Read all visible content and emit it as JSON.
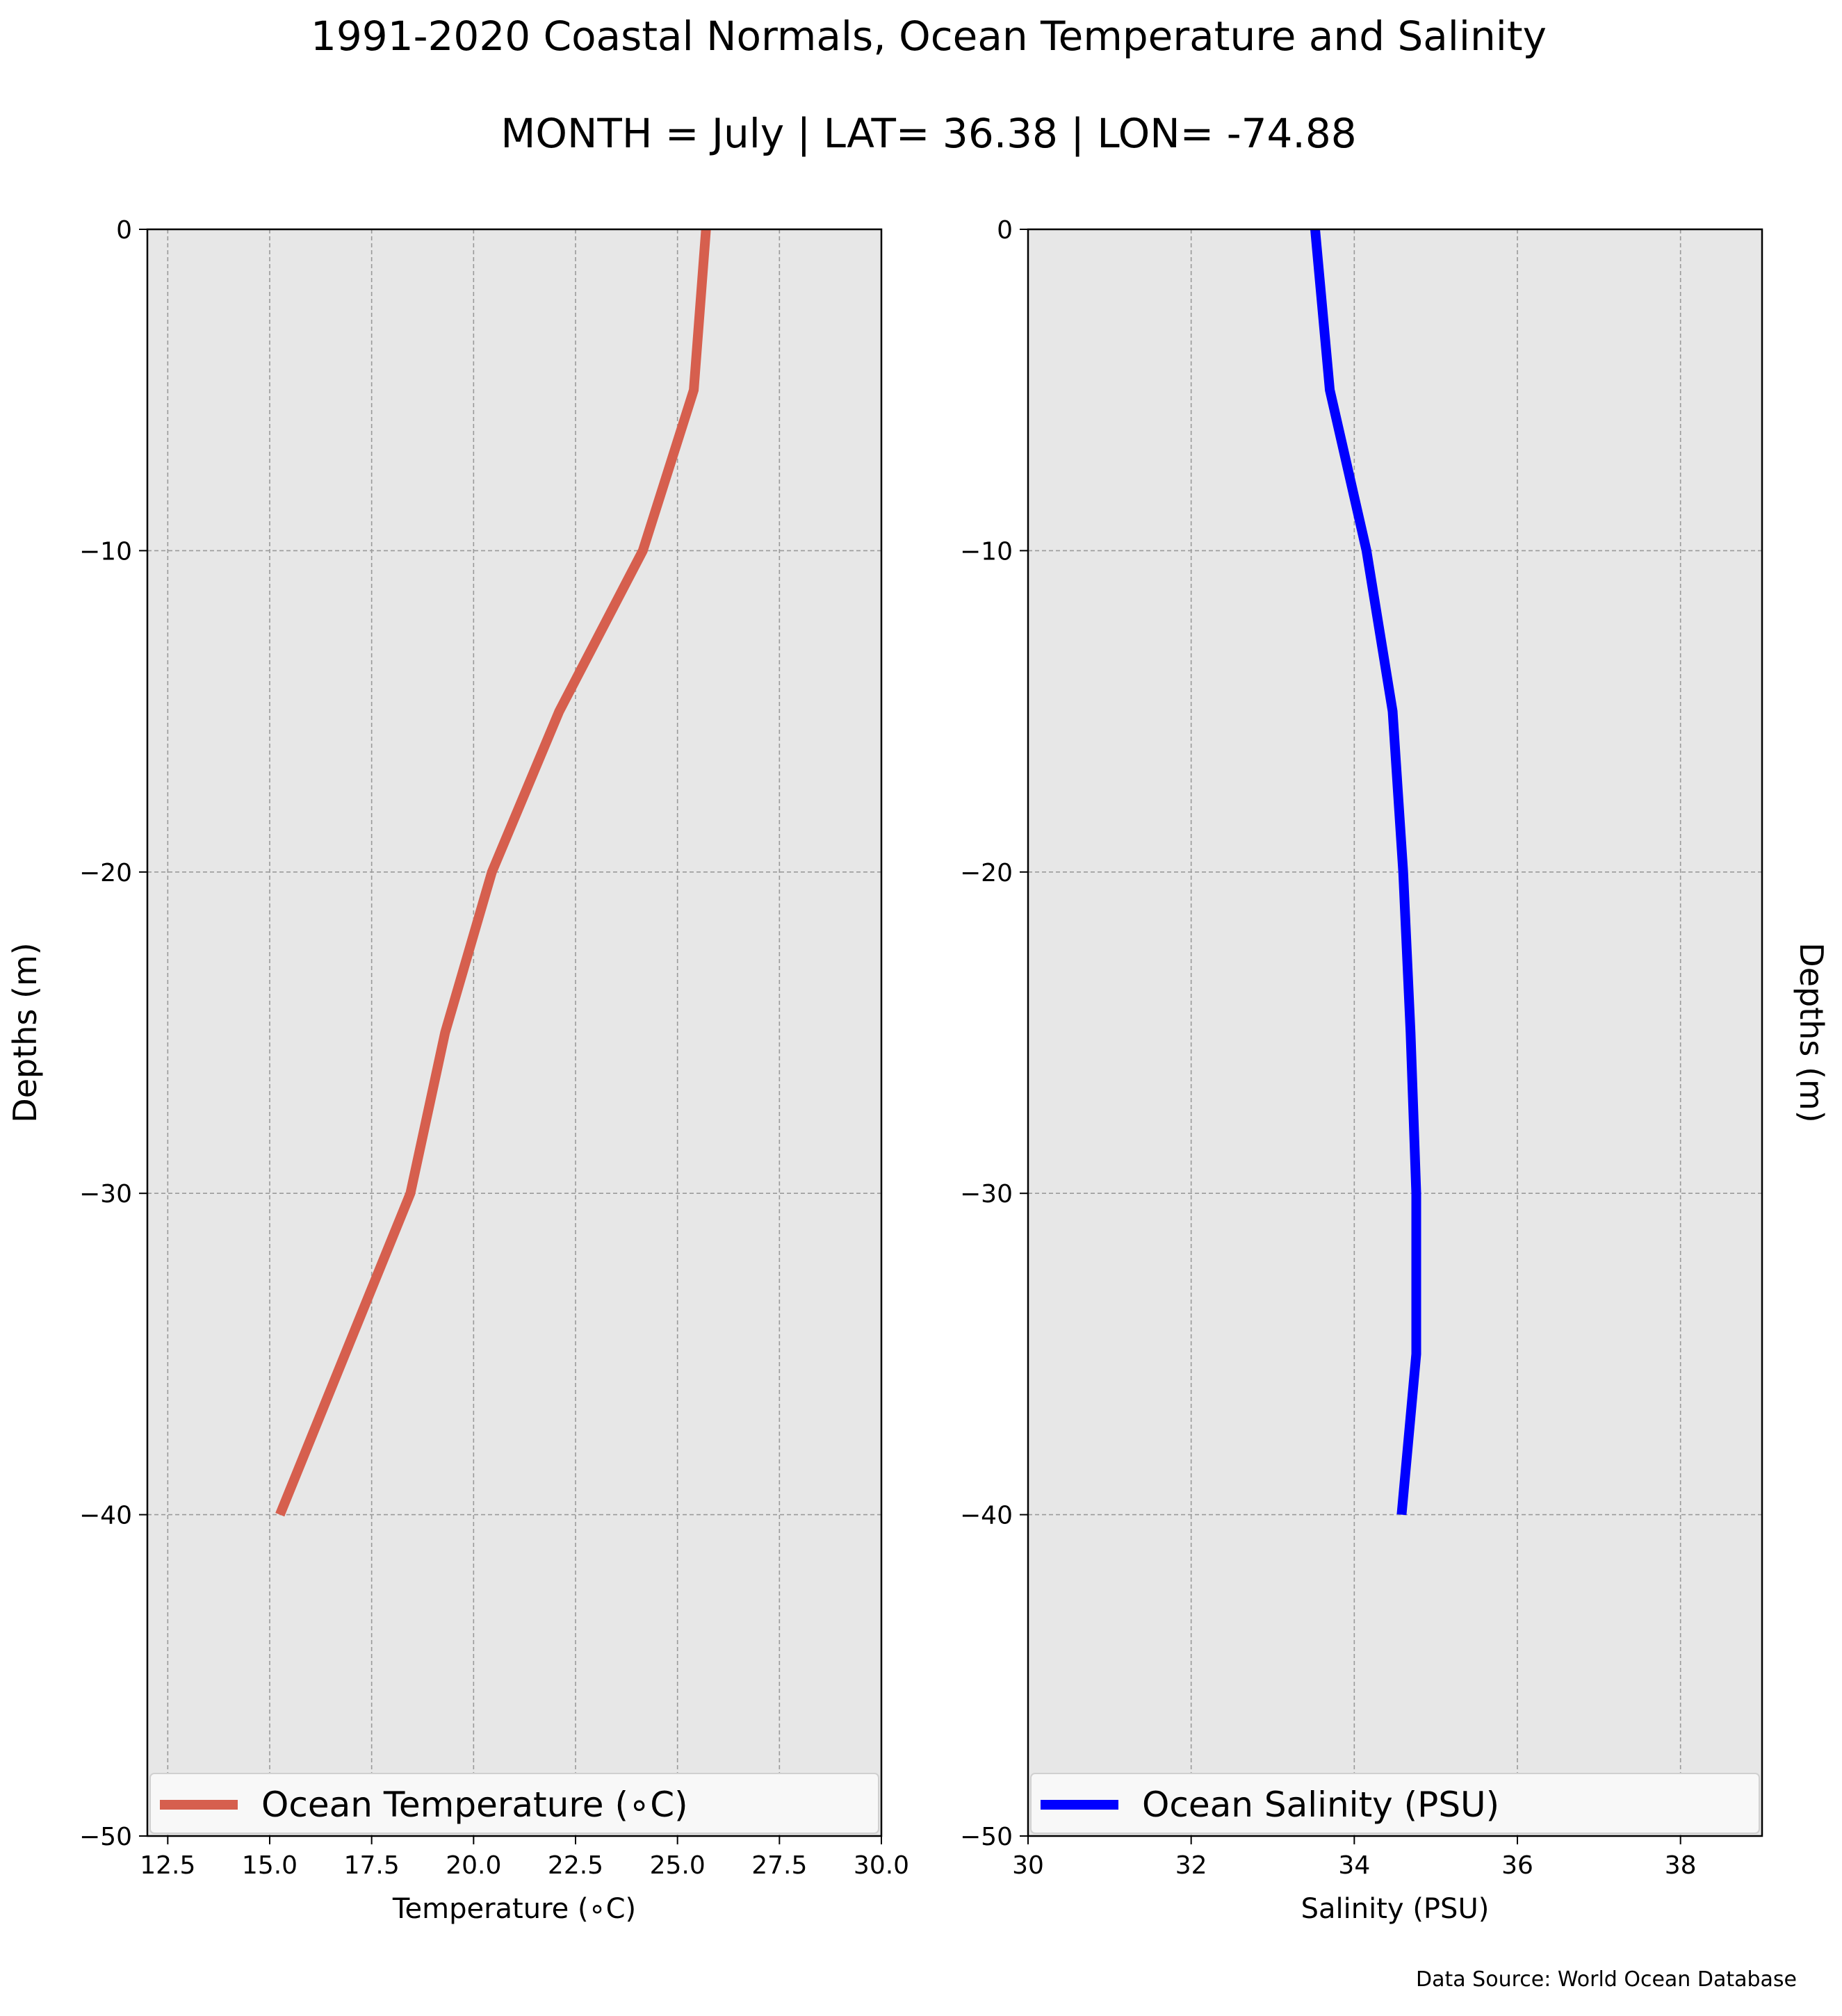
{
  "header": {
    "title": "1991-2020 Coastal Normals, Ocean Temperature and Salinity",
    "subtitle": "MONTH = July | LAT= 36.38 | LON= -74.88"
  },
  "footer": {
    "source": "Data Source: World Ocean Database"
  },
  "chart_data": [
    {
      "type": "line",
      "xlabel": "Temperature ($^\\circ$C)",
      "xlabel_display": "Temperature (∘C)",
      "ylabel": "Depths (m)",
      "xlim": [
        12,
        30
      ],
      "ylim": [
        -50,
        0
      ],
      "xticks": [
        12.5,
        15.0,
        17.5,
        20.0,
        22.5,
        25.0,
        27.5,
        30.0
      ],
      "xtick_labels": [
        "12.5",
        "15.0",
        "17.5",
        "20.0",
        "22.5",
        "25.0",
        "27.5",
        "30.0"
      ],
      "yticks": [
        0,
        -10,
        -20,
        -30,
        -40,
        -50
      ],
      "ytick_labels": [
        "0",
        "−10",
        "−20",
        "−30",
        "−40",
        "−50"
      ],
      "grid": true,
      "legend_position": "lower center",
      "series": [
        {
          "name": "Ocean Temperature (∘C)",
          "color": "#d65f4e",
          "x": [
            25.7,
            25.4,
            24.15,
            22.1,
            20.45,
            19.3,
            18.45,
            16.85,
            15.25
          ],
          "y": [
            0,
            -5,
            -10,
            -15,
            -20,
            -25,
            -30,
            -35,
            -40
          ]
        }
      ]
    },
    {
      "type": "line",
      "xlabel": "Salinity (PSU)",
      "ylabel": "Depths (m)",
      "xlim": [
        30,
        39
      ],
      "ylim": [
        -50,
        0
      ],
      "xticks": [
        30,
        32,
        34,
        36,
        38
      ],
      "xtick_labels": [
        "30",
        "32",
        "34",
        "36",
        "38"
      ],
      "yticks": [
        0,
        -10,
        -20,
        -30,
        -40,
        -50
      ],
      "ytick_labels": [
        "0",
        "−10",
        "−20",
        "−30",
        "−40",
        "−50"
      ],
      "grid": true,
      "legend_position": "lower center",
      "series": [
        {
          "name": "Ocean Salinity (PSU)",
          "color": "#0000ff",
          "x": [
            33.52,
            33.7,
            34.15,
            34.47,
            34.6,
            34.69,
            34.76,
            34.76,
            34.58
          ],
          "y": [
            0,
            -5,
            -10,
            -15,
            -20,
            -25,
            -30,
            -35,
            -40
          ]
        }
      ]
    }
  ]
}
